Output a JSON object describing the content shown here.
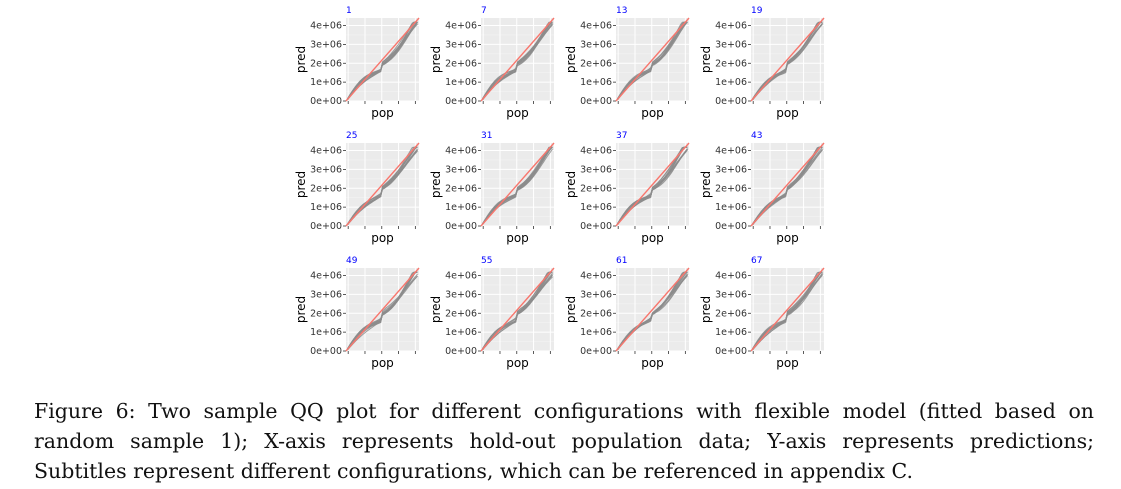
{
  "chart_data": {
    "type": "line",
    "panel_titles": [
      "1",
      "7",
      "13",
      "19",
      "25",
      "31",
      "37",
      "43",
      "49",
      "55",
      "61",
      "67"
    ],
    "xlabel": "pop",
    "ylabel": "pred",
    "yticks": [
      "0e+00",
      "1e+06",
      "2e+06",
      "3e+06",
      "4e+06"
    ],
    "ylim": [
      0,
      4400000
    ],
    "grid": true,
    "colors": {
      "panel_bg": "#ebebeb",
      "grid": "#ffffff",
      "series": "#8c8c8c",
      "reference_line": "#f8766d",
      "title": "#0000ff"
    }
  },
  "caption": "Figure 6: Two sample QQ plot for different configurations with flexible model (fitted based on random sample 1); X-axis represents hold-out population data; Y-axis represents predictions; Subtitles represent different configurations, which can be referenced in appendix C."
}
